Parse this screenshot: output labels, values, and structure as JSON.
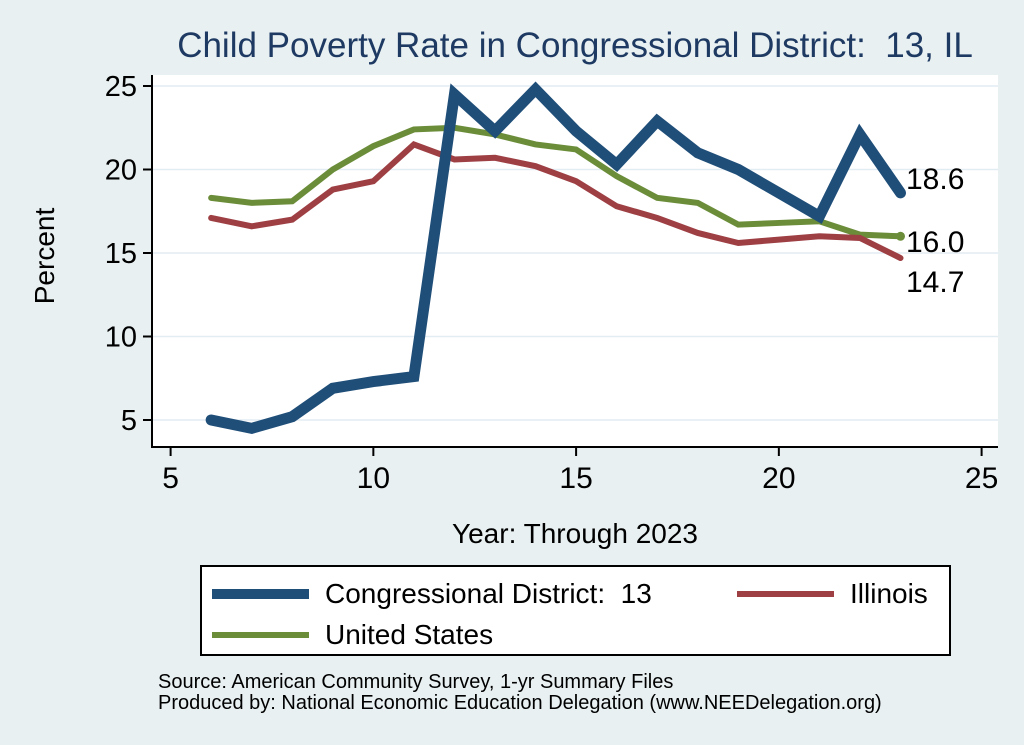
{
  "title": "Child Poverty Rate in Congressional District:  13, IL",
  "chart_data": {
    "type": "line",
    "x": [
      6,
      7,
      8,
      9,
      10,
      11,
      12,
      13,
      14,
      15,
      16,
      17,
      18,
      19,
      20,
      21,
      22,
      23
    ],
    "series": [
      {
        "name": "Congressional District:  13",
        "color": "#1f4e79",
        "line_width": 11,
        "values": [
          5.0,
          4.5,
          5.2,
          6.9,
          7.3,
          7.6,
          24.5,
          22.3,
          24.8,
          22.3,
          20.3,
          22.9,
          21.0,
          20.0,
          18.6,
          17.2,
          22.1,
          18.6
        ]
      },
      {
        "name": "Illinois",
        "color": "#9e3f44",
        "line_width": 6,
        "values": [
          17.1,
          16.6,
          17.0,
          18.8,
          19.3,
          21.5,
          20.6,
          20.7,
          20.2,
          19.3,
          17.8,
          17.1,
          16.2,
          15.6,
          15.8,
          16.0,
          15.9,
          14.7
        ]
      },
      {
        "name": "United States",
        "color": "#6b8d3a",
        "line_width": 6,
        "end_marker": true,
        "values": [
          18.3,
          18.0,
          18.1,
          20.0,
          21.4,
          22.4,
          22.5,
          22.1,
          21.5,
          21.2,
          19.6,
          18.3,
          18.0,
          16.7,
          16.8,
          16.9,
          16.1,
          16.0
        ]
      }
    ],
    "title": "Child Poverty Rate in Congressional District:  13, IL",
    "xlabel": "Year: Through 2023",
    "ylabel": "Percent",
    "xticks": [
      5,
      10,
      15,
      20,
      25
    ],
    "yticks": [
      5,
      10,
      15,
      20,
      25
    ],
    "xlim": [
      4.55,
      25.42
    ],
    "ylim": [
      3.4,
      25.7
    ],
    "grid": "horizontal",
    "gridline_color": "#e2ecf3",
    "plot_bg": "#ffffff",
    "page_bg": "#e8f0f2",
    "title_color": "#1e3a62",
    "legend_position": "bottom-box",
    "end_labels": [
      {
        "text": "18.6",
        "series": "Congressional District:  13"
      },
      {
        "text": "16.0",
        "series": "United States"
      },
      {
        "text": "14.7",
        "series": "Illinois"
      }
    ]
  },
  "footer": {
    "source": "Source: American Community Survey, 1-yr Summary Files",
    "produced_by": "Produced by: National Economic Education Delegation (www.NEEDelegation.org)"
  }
}
